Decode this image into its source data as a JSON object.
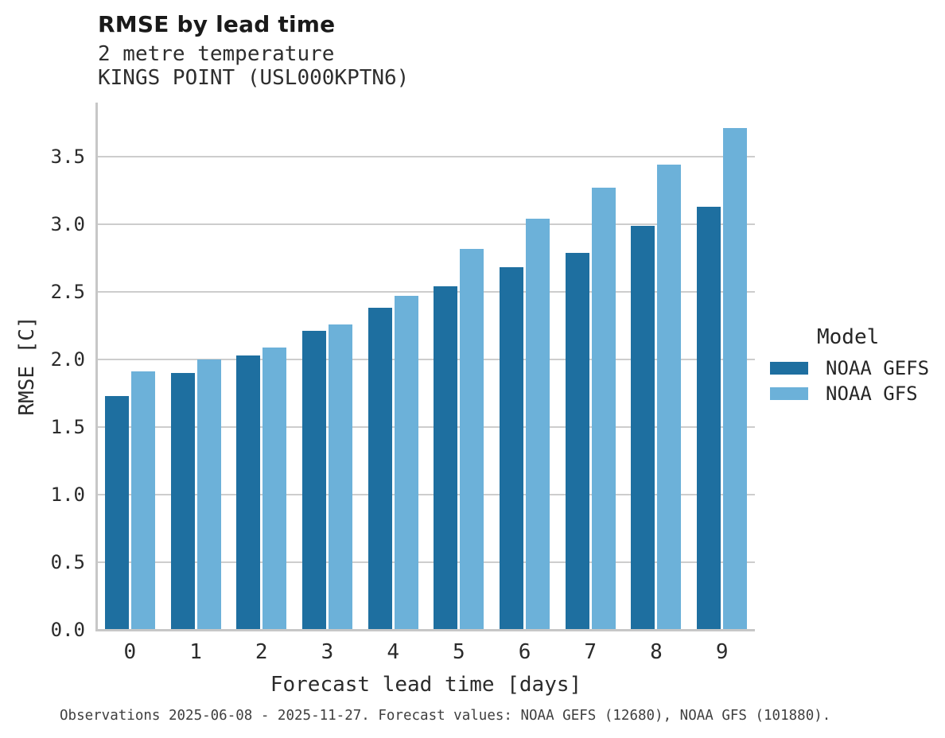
{
  "header": {
    "title": "RMSE by lead time",
    "subtitle_line1": "2 metre temperature",
    "subtitle_line2": "KINGS POINT (USL000KPTN6)"
  },
  "chart_data": {
    "type": "bar",
    "title": "RMSE by lead time",
    "subtitle": [
      "2 metre temperature",
      "KINGS POINT (USL000KPTN6)"
    ],
    "categories": [
      "0",
      "1",
      "2",
      "3",
      "4",
      "5",
      "6",
      "7",
      "8",
      "9"
    ],
    "series": [
      {
        "name": "NOAA GEFS",
        "color": "#1e6fa0",
        "values": [
          1.73,
          1.9,
          2.03,
          2.21,
          2.38,
          2.54,
          2.68,
          2.79,
          2.99,
          3.13
        ]
      },
      {
        "name": "NOAA GFS",
        "color": "#6cb1d9",
        "values": [
          1.91,
          2.0,
          2.09,
          2.26,
          2.47,
          2.82,
          3.04,
          3.27,
          3.44,
          3.71
        ]
      }
    ],
    "xlabel": "Forecast lead time [days]",
    "ylabel": "RMSE [C]",
    "ylim": [
      0,
      3.9
    ],
    "yticks": [
      "0.0",
      "0.5",
      "1.0",
      "1.5",
      "2.0",
      "2.5",
      "3.0",
      "3.5"
    ],
    "grid": true,
    "legend": {
      "title": "Model",
      "position": "right"
    }
  },
  "footer": {
    "text": "Observations 2025-06-08 - 2025-11-27. Forecast values: NOAA GEFS (12680), NOAA GFS (101880)."
  }
}
